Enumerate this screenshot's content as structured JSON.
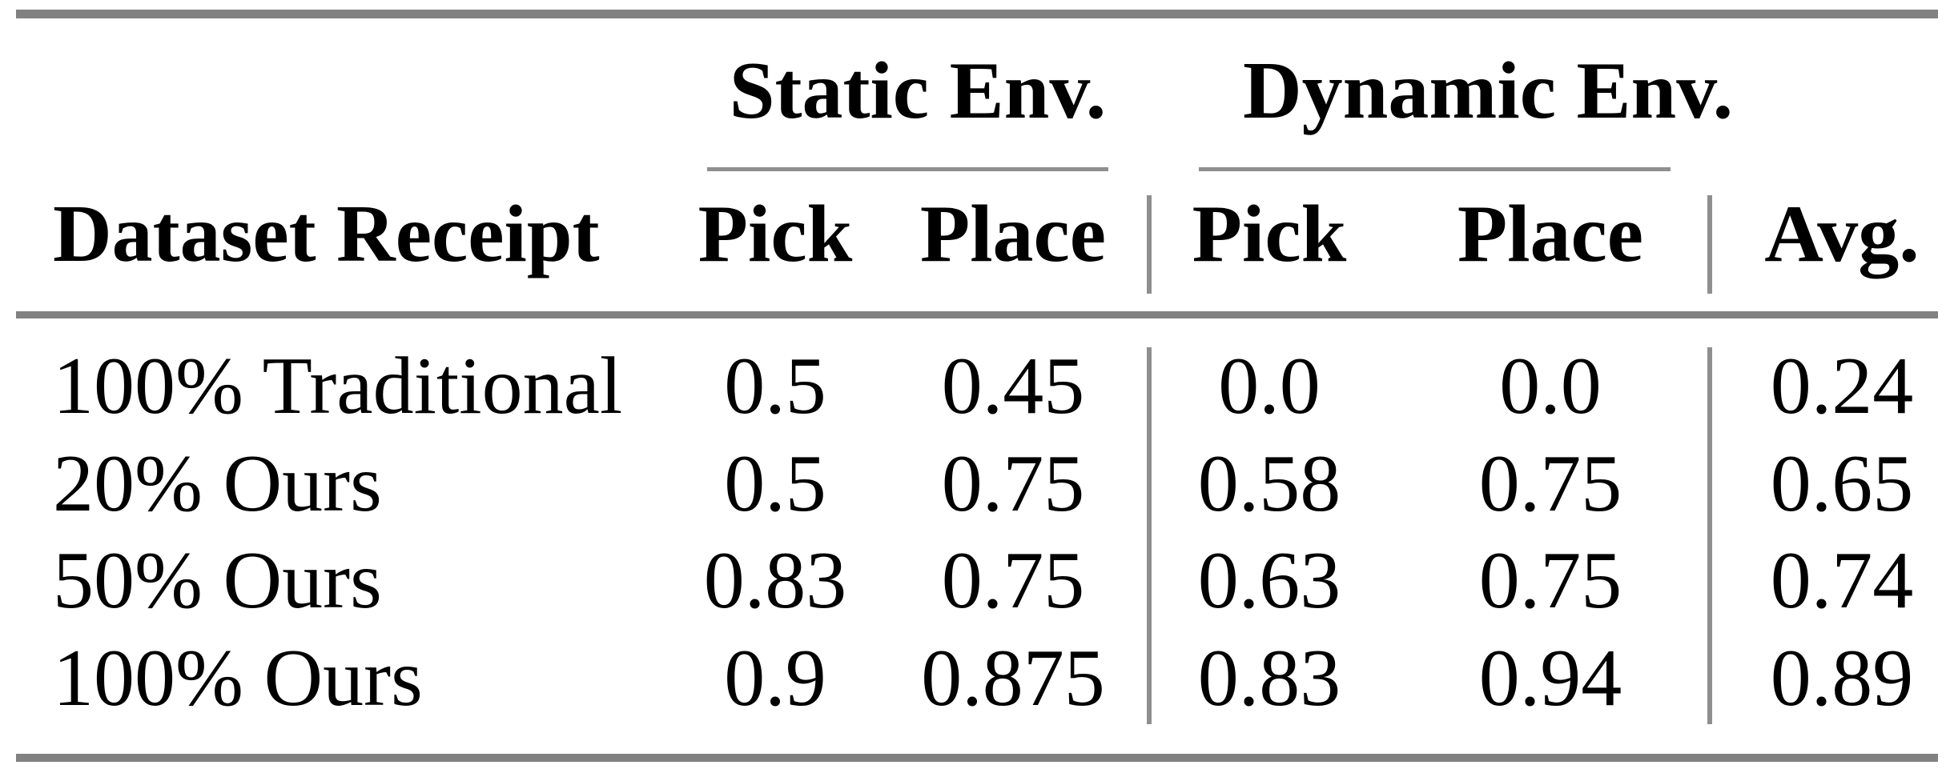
{
  "table": {
    "col_groups": [
      {
        "label": "Static Env."
      },
      {
        "label": "Dynamic Env."
      }
    ],
    "headers": {
      "dataset_receipt": "Dataset Receipt",
      "static_pick": "Pick",
      "static_place": "Place",
      "dynamic_pick": "Pick",
      "dynamic_place": "Place",
      "avg": "Avg."
    },
    "rows": [
      {
        "label": "100% Traditional",
        "static_pick": "0.5",
        "static_place": "0.45",
        "dynamic_pick": "0.0",
        "dynamic_place": "0.0",
        "avg": "0.24"
      },
      {
        "label": "20% Ours",
        "static_pick": "0.5",
        "static_place": "0.75",
        "dynamic_pick": "0.58",
        "dynamic_place": "0.75",
        "avg": "0.65"
      },
      {
        "label": "50% Ours",
        "static_pick": "0.83",
        "static_place": "0.75",
        "dynamic_pick": "0.63",
        "dynamic_place": "0.75",
        "avg": "0.74"
      },
      {
        "label": "100% Ours",
        "static_pick": "0.9",
        "static_place": "0.875",
        "dynamic_pick": "0.83",
        "dynamic_place": "0.94",
        "avg": "0.89"
      }
    ],
    "colors": {
      "heavy_rule": "#818181",
      "thin_rule": "#8f8f8f",
      "text": "#000000",
      "background": "#ffffff"
    }
  },
  "chart_data": {
    "type": "table",
    "column_groups": [
      {
        "label": "Static Env.",
        "columns": [
          "Pick",
          "Place"
        ]
      },
      {
        "label": "Dynamic Env.",
        "columns": [
          "Pick",
          "Place"
        ]
      }
    ],
    "columns": [
      "Dataset Receipt",
      "Static Env. Pick",
      "Static Env. Place",
      "Dynamic Env. Pick",
      "Dynamic Env. Place",
      "Avg."
    ],
    "rows": [
      [
        "100% Traditional",
        0.5,
        0.45,
        0.0,
        0.0,
        0.24
      ],
      [
        "20% Ours",
        0.5,
        0.75,
        0.58,
        0.75,
        0.65
      ],
      [
        "50% Ours",
        0.83,
        0.75,
        0.63,
        0.75,
        0.74
      ],
      [
        "100% Ours",
        0.9,
        0.875,
        0.83,
        0.94,
        0.89
      ]
    ]
  }
}
